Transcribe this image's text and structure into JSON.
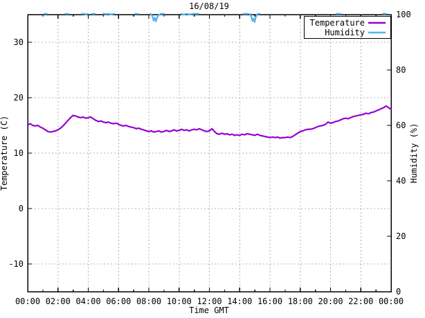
{
  "chart_data": {
    "type": "line",
    "title": "16/08/19",
    "xlabel": "Time GMT",
    "x_tick_labels": [
      "00:00",
      "02:00",
      "04:00",
      "06:00",
      "08:00",
      "10:00",
      "12:00",
      "14:00",
      "16:00",
      "18:00",
      "20:00",
      "22:00",
      "00:00"
    ],
    "x_tick_hours": [
      0,
      2,
      4,
      6,
      8,
      10,
      12,
      14,
      16,
      18,
      20,
      22,
      24
    ],
    "x_range_hours": [
      0,
      24
    ],
    "axes": {
      "left": {
        "label": "Temperature (C)",
        "range": [
          -15,
          35
        ],
        "tick_values": [
          30,
          20,
          10,
          0,
          -10
        ],
        "tick_labels": [
          "30",
          "20",
          "10",
          "0",
          "-10"
        ]
      },
      "right": {
        "label": "Humidity (%)",
        "range": [
          0,
          100
        ],
        "tick_values": [
          100,
          80,
          60,
          40,
          20,
          0
        ],
        "tick_labels": [
          "100",
          "80",
          "60",
          "40",
          "20",
          "0"
        ]
      }
    },
    "grid": {
      "shown": true,
      "color": "#b0b0b0"
    },
    "legend": {
      "position": "top-right",
      "entries": [
        {
          "label": "Temperature",
          "color": "#9400D3"
        },
        {
          "label": "Humidity",
          "color": "#56B4E9"
        }
      ]
    },
    "series": [
      {
        "name": "Temperature",
        "axis": "left",
        "color": "#9400D3",
        "sample_interval_minutes": 10,
        "start_minute": 0,
        "values": [
          15.1,
          15.3,
          15.0,
          14.9,
          15.0,
          14.7,
          14.5,
          14.2,
          13.9,
          13.8,
          13.9,
          14.0,
          14.2,
          14.5,
          14.9,
          15.4,
          15.9,
          16.4,
          16.8,
          16.7,
          16.5,
          16.4,
          16.5,
          16.3,
          16.4,
          16.5,
          16.2,
          15.9,
          15.7,
          15.8,
          15.6,
          15.5,
          15.6,
          15.4,
          15.3,
          15.4,
          15.2,
          15.0,
          14.9,
          15.0,
          14.8,
          14.7,
          14.6,
          14.4,
          14.5,
          14.3,
          14.2,
          14.0,
          13.9,
          14.0,
          13.8,
          13.9,
          14.0,
          13.8,
          13.9,
          14.1,
          13.9,
          14.0,
          14.2,
          14.0,
          14.1,
          14.3,
          14.1,
          14.2,
          14.0,
          14.2,
          14.3,
          14.2,
          14.4,
          14.2,
          14.0,
          13.9,
          14.0,
          14.4,
          13.9,
          13.5,
          13.4,
          13.6,
          13.4,
          13.5,
          13.3,
          13.4,
          13.2,
          13.3,
          13.2,
          13.4,
          13.3,
          13.5,
          13.4,
          13.3,
          13.2,
          13.4,
          13.2,
          13.1,
          13.0,
          12.9,
          12.8,
          12.9,
          12.8,
          12.9,
          12.7,
          12.8,
          12.8,
          12.9,
          12.8,
          13.0,
          13.3,
          13.6,
          13.9,
          14.0,
          14.2,
          14.3,
          14.3,
          14.4,
          14.6,
          14.8,
          14.9,
          15.0,
          15.2,
          15.6,
          15.4,
          15.5,
          15.7,
          15.8,
          16.0,
          16.2,
          16.3,
          16.2,
          16.4,
          16.6,
          16.7,
          16.8,
          16.9,
          17.0,
          17.2,
          17.1,
          17.3,
          17.4,
          17.6,
          17.8,
          18.0,
          18.2,
          18.5,
          18.2,
          17.9
        ]
      },
      {
        "name": "Humidity",
        "axis": "right",
        "color": "#56B4E9",
        "note": "pegged at 100%; line visible only where it touches or dips below 100",
        "segments": [
          [
            [
              66,
              100
            ],
            [
              76,
              100
            ]
          ],
          [
            [
              150,
              100
            ],
            [
              160,
              100
            ]
          ],
          [
            [
              216,
              100
            ],
            [
              226,
              100
            ],
            [
              230,
              99.8
            ],
            [
              237,
              100
            ]
          ],
          [
            [
              254,
              100
            ],
            [
              266,
              100
            ]
          ],
          [
            [
              300,
              100
            ],
            [
              312,
              99.9
            ],
            [
              320,
              100
            ],
            [
              330,
              99.8
            ],
            [
              343,
              100
            ]
          ],
          [
            [
              427,
              100
            ],
            [
              437,
              100
            ]
          ],
          [
            [
              487,
              100
            ],
            [
              494,
              99.2
            ],
            [
              499,
              97.6
            ],
            [
              503,
              98.6
            ],
            [
              508,
              97.3
            ],
            [
              514,
              98.9
            ],
            [
              520,
              99.6
            ],
            [
              528,
              100
            ],
            [
              540,
              100
            ]
          ],
          [
            [
              608,
              100
            ],
            [
              618,
              99.7
            ],
            [
              628,
              100
            ],
            [
              642,
              99.8
            ],
            [
              656,
              100
            ],
            [
              676,
              100
            ]
          ],
          [
            [
              855,
              100
            ],
            [
              872,
              100
            ]
          ],
          [
            [
              880,
              100
            ],
            [
              886,
              99.0
            ],
            [
              891,
              97.4
            ],
            [
              895,
              98.3
            ],
            [
              899,
              97.1
            ],
            [
              903,
              98.6
            ],
            [
              907,
              99.4
            ],
            [
              912,
              100
            ],
            [
              918,
              100
            ]
          ],
          [
            [
              1224,
              100
            ],
            [
              1240,
              100
            ]
          ],
          [
            [
              1408,
              100
            ],
            [
              1420,
              100
            ]
          ]
        ]
      }
    ]
  },
  "colors": {
    "background": "#ffffff",
    "border": "#000000",
    "text": "#000000",
    "grid": "#b0b0b0"
  }
}
